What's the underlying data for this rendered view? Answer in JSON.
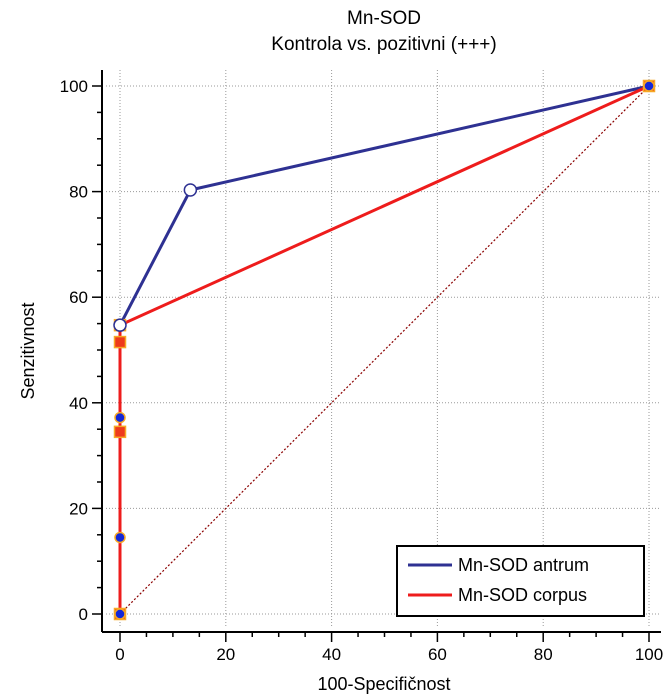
{
  "chart_data": {
    "type": "line",
    "title": "Mn-SOD",
    "subtitle": "Kontrola vs. pozitivni (+++)",
    "xlabel": "100-Specifičnost",
    "ylabel": "Senzitivnost",
    "xlim": [
      0,
      100
    ],
    "ylim": [
      0,
      100
    ],
    "xticks": [
      0,
      20,
      40,
      60,
      80,
      100
    ],
    "yticks": [
      0,
      20,
      40,
      60,
      80,
      100
    ],
    "grid": true,
    "legend_position": "bottom-right",
    "series": [
      {
        "name": "Mn-SOD antrum",
        "color": "#2e3192",
        "x": [
          0,
          0,
          0,
          0,
          13.3,
          100
        ],
        "y": [
          0,
          14.5,
          37.2,
          54.7,
          80.3,
          100
        ]
      },
      {
        "name": "Mn-SOD corpus",
        "color": "#ee1c1c",
        "x": [
          0,
          0,
          0,
          0,
          100
        ],
        "y": [
          0,
          34.5,
          51.5,
          54.7,
          100
        ]
      }
    ],
    "diagonal": {
      "x": [
        0,
        100
      ],
      "y": [
        0,
        100
      ],
      "color": "#8b0000"
    }
  }
}
